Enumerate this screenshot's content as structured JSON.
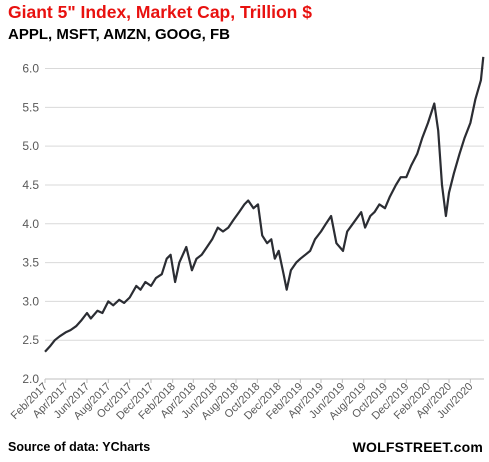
{
  "header": {
    "title": "Giant 5\" Index, Market Cap, Trillion $",
    "subtitle": "APPL, MSFT, AMZN, GOOG, FB"
  },
  "footer": {
    "source": "Source of data: YCharts",
    "brand": "WOLFSTREET.com"
  },
  "colors": {
    "title": "#e8110f",
    "line": "#2b2d33",
    "grid": "#d9d9d9",
    "axis": "#bfbfbf",
    "text": "#595959"
  },
  "chart_data": {
    "type": "line",
    "title": "Giant 5\" Index, Market Cap, Trillion $",
    "ylim": [
      2.0,
      6.2
    ],
    "yticks": [
      2.0,
      2.5,
      3.0,
      3.5,
      4.0,
      4.5,
      5.0,
      5.5,
      6.0
    ],
    "ytick_labels": [
      "2.0",
      "2.5",
      "3.0",
      "3.5",
      "4.0",
      "4.5",
      "5.0",
      "5.5",
      "6.0"
    ],
    "xlim": [
      "2017-02-01",
      "2020-07-10"
    ],
    "xticks": [
      "2017-02-01",
      "2017-04-01",
      "2017-06-01",
      "2017-08-01",
      "2017-10-01",
      "2017-12-01",
      "2018-02-01",
      "2018-04-01",
      "2018-06-01",
      "2018-08-01",
      "2018-10-01",
      "2018-12-01",
      "2019-02-01",
      "2019-04-01",
      "2019-06-01",
      "2019-08-01",
      "2019-10-01",
      "2019-12-01",
      "2020-02-01",
      "2020-04-01",
      "2020-06-01"
    ],
    "xtick_labels": [
      "Feb/2017",
      "Apr/2017",
      "Jun/2017",
      "Aug/2017",
      "Oct/2017",
      "Dec/2017",
      "Feb/2018",
      "Apr/2018",
      "Jun/2018",
      "Aug/2018",
      "Oct/2018",
      "Dec/2018",
      "Feb/2019",
      "Apr/2019",
      "Jun/2019",
      "Aug/2019",
      "Oct/2019",
      "Dec/2019",
      "Feb/2020",
      "Apr/2020",
      "Jun/2020"
    ],
    "grid": true,
    "series": [
      {
        "x": [
          "2017-02-01",
          "2017-02-15",
          "2017-03-01",
          "2017-03-15",
          "2017-04-01",
          "2017-04-15",
          "2017-05-01",
          "2017-05-15",
          "2017-06-01",
          "2017-06-12",
          "2017-07-01",
          "2017-07-15",
          "2017-08-01",
          "2017-08-15",
          "2017-09-01",
          "2017-09-15",
          "2017-10-01",
          "2017-10-20",
          "2017-11-01",
          "2017-11-15",
          "2017-12-01",
          "2017-12-15",
          "2018-01-01",
          "2018-01-15",
          "2018-01-26",
          "2018-02-08",
          "2018-02-20",
          "2018-03-12",
          "2018-03-28",
          "2018-04-10",
          "2018-04-25",
          "2018-05-10",
          "2018-05-25",
          "2018-06-10",
          "2018-06-25",
          "2018-07-10",
          "2018-07-25",
          "2018-08-10",
          "2018-08-25",
          "2018-09-05",
          "2018-09-20",
          "2018-10-03",
          "2018-10-15",
          "2018-10-29",
          "2018-11-10",
          "2018-11-20",
          "2018-12-01",
          "2018-12-15",
          "2018-12-24",
          "2019-01-05",
          "2019-01-20",
          "2019-02-01",
          "2019-02-15",
          "2019-03-01",
          "2019-03-15",
          "2019-04-01",
          "2019-04-15",
          "2019-04-30",
          "2019-05-15",
          "2019-06-03",
          "2019-06-15",
          "2019-07-01",
          "2019-07-25",
          "2019-08-05",
          "2019-08-20",
          "2019-09-01",
          "2019-09-15",
          "2019-10-01",
          "2019-10-15",
          "2019-11-01",
          "2019-11-15",
          "2019-12-01",
          "2019-12-15",
          "2020-01-01",
          "2020-01-15",
          "2020-02-01",
          "2020-02-19",
          "2020-03-01",
          "2020-03-12",
          "2020-03-23",
          "2020-04-01",
          "2020-04-15",
          "2020-05-01",
          "2020-05-15",
          "2020-06-01",
          "2020-06-15",
          "2020-07-01",
          "2020-07-08"
        ],
        "y": [
          2.35,
          2.42,
          2.5,
          2.55,
          2.6,
          2.63,
          2.68,
          2.75,
          2.85,
          2.78,
          2.88,
          2.85,
          3.0,
          2.95,
          3.02,
          2.98,
          3.05,
          3.2,
          3.15,
          3.25,
          3.2,
          3.3,
          3.35,
          3.55,
          3.6,
          3.25,
          3.5,
          3.7,
          3.4,
          3.55,
          3.6,
          3.7,
          3.8,
          3.95,
          3.9,
          3.95,
          4.05,
          4.15,
          4.25,
          4.3,
          4.2,
          4.25,
          3.85,
          3.75,
          3.8,
          3.55,
          3.65,
          3.35,
          3.15,
          3.4,
          3.5,
          3.55,
          3.6,
          3.65,
          3.8,
          3.9,
          4.0,
          4.1,
          3.75,
          3.65,
          3.9,
          4.0,
          4.15,
          3.95,
          4.1,
          4.15,
          4.25,
          4.2,
          4.35,
          4.5,
          4.6,
          4.6,
          4.75,
          4.9,
          5.1,
          5.3,
          5.55,
          5.2,
          4.5,
          4.1,
          4.4,
          4.65,
          4.9,
          5.1,
          5.3,
          5.6,
          5.85,
          6.15
        ]
      }
    ]
  }
}
